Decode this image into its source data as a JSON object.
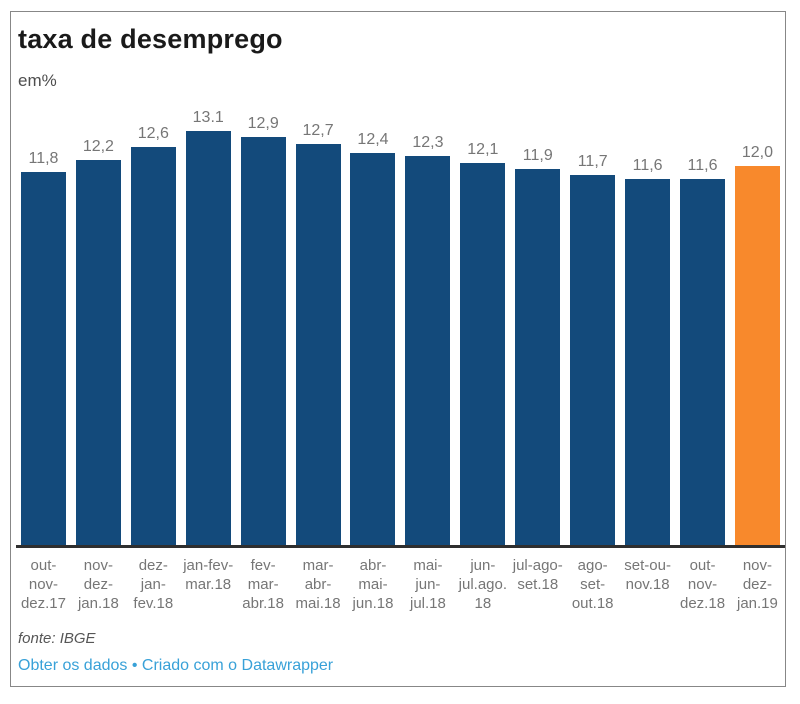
{
  "header": {
    "title": "taxa de desemprego",
    "subtitle": "em%"
  },
  "chart_data": {
    "type": "bar",
    "title": "taxa de desemprego",
    "ylabel": "em%",
    "xlabel": "",
    "ylim": [
      0,
      13.1
    ],
    "grid": false,
    "legend": false,
    "bar_color": "#134a7b",
    "highlight_color": "#f8892c",
    "highlight_index": 13,
    "value_label_color": "#767676",
    "axis_label_color": "#767676",
    "categories": [
      [
        "out-",
        "nov-",
        "dez.17"
      ],
      [
        "nov-",
        "dez-",
        "jan.18"
      ],
      [
        "dez-",
        "jan-",
        "fev.18"
      ],
      [
        "jan-fev-",
        "mar.18"
      ],
      [
        "fev-",
        "mar-",
        "abr.18"
      ],
      [
        "mar-",
        "abr-",
        "mai.18"
      ],
      [
        "abr-",
        "mai-",
        "jun.18"
      ],
      [
        "mai-",
        "jun-",
        "jul.18"
      ],
      [
        "jun-",
        "jul.ago.",
        "18"
      ],
      [
        "jul-ago-",
        "set.18"
      ],
      [
        "ago-",
        "set-",
        "out.18"
      ],
      [
        "set-ou-",
        "nov.18"
      ],
      [
        "out-",
        "nov-",
        "dez.18"
      ],
      [
        "nov-",
        "dez-",
        "jan.19"
      ]
    ],
    "values": [
      11.8,
      12.2,
      12.6,
      13.1,
      12.9,
      12.7,
      12.4,
      12.3,
      12.1,
      11.9,
      11.7,
      11.6,
      11.6,
      12.0
    ],
    "value_labels": [
      "11,8",
      "12,2",
      "12,6",
      "13.1",
      "12,9",
      "12,7",
      "12,4",
      "12,3",
      "12,1",
      "11,9",
      "11,7",
      "11,6",
      "11,6",
      "12,0"
    ]
  },
  "footer": {
    "source": "fonte: IBGE",
    "link_1": "Obter os dados",
    "separator": "•",
    "link_2": "Criado com o Datawrapper",
    "link_color": "#38a1d8"
  }
}
